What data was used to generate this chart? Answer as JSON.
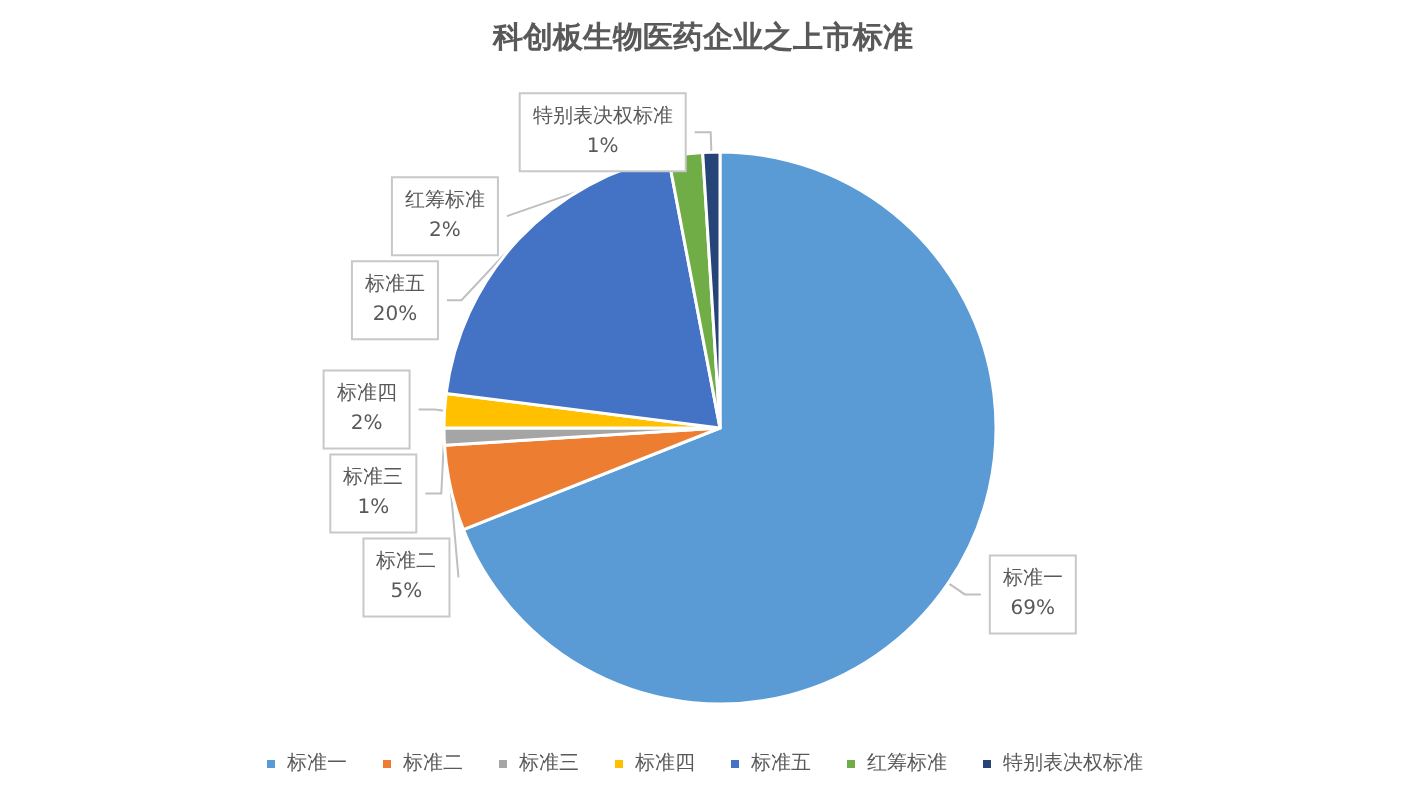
{
  "chart_data": {
    "type": "pie",
    "title": "科创板生物医药企业之上市标准",
    "categories": [
      "标准一",
      "标准二",
      "标准三",
      "标准四",
      "标准五",
      "红筹标准",
      "特别表决权标准"
    ],
    "values": [
      69,
      5,
      1,
      2,
      20,
      2,
      1
    ],
    "value_labels": [
      "69%",
      "5%",
      "1%",
      "2%",
      "20%",
      "2%",
      "1%"
    ],
    "colors": [
      "#5b9bd5",
      "#ed7d31",
      "#a5a5a5",
      "#ffc000",
      "#4472c4",
      "#70ad47",
      "#264478"
    ],
    "legend": "bottom"
  }
}
